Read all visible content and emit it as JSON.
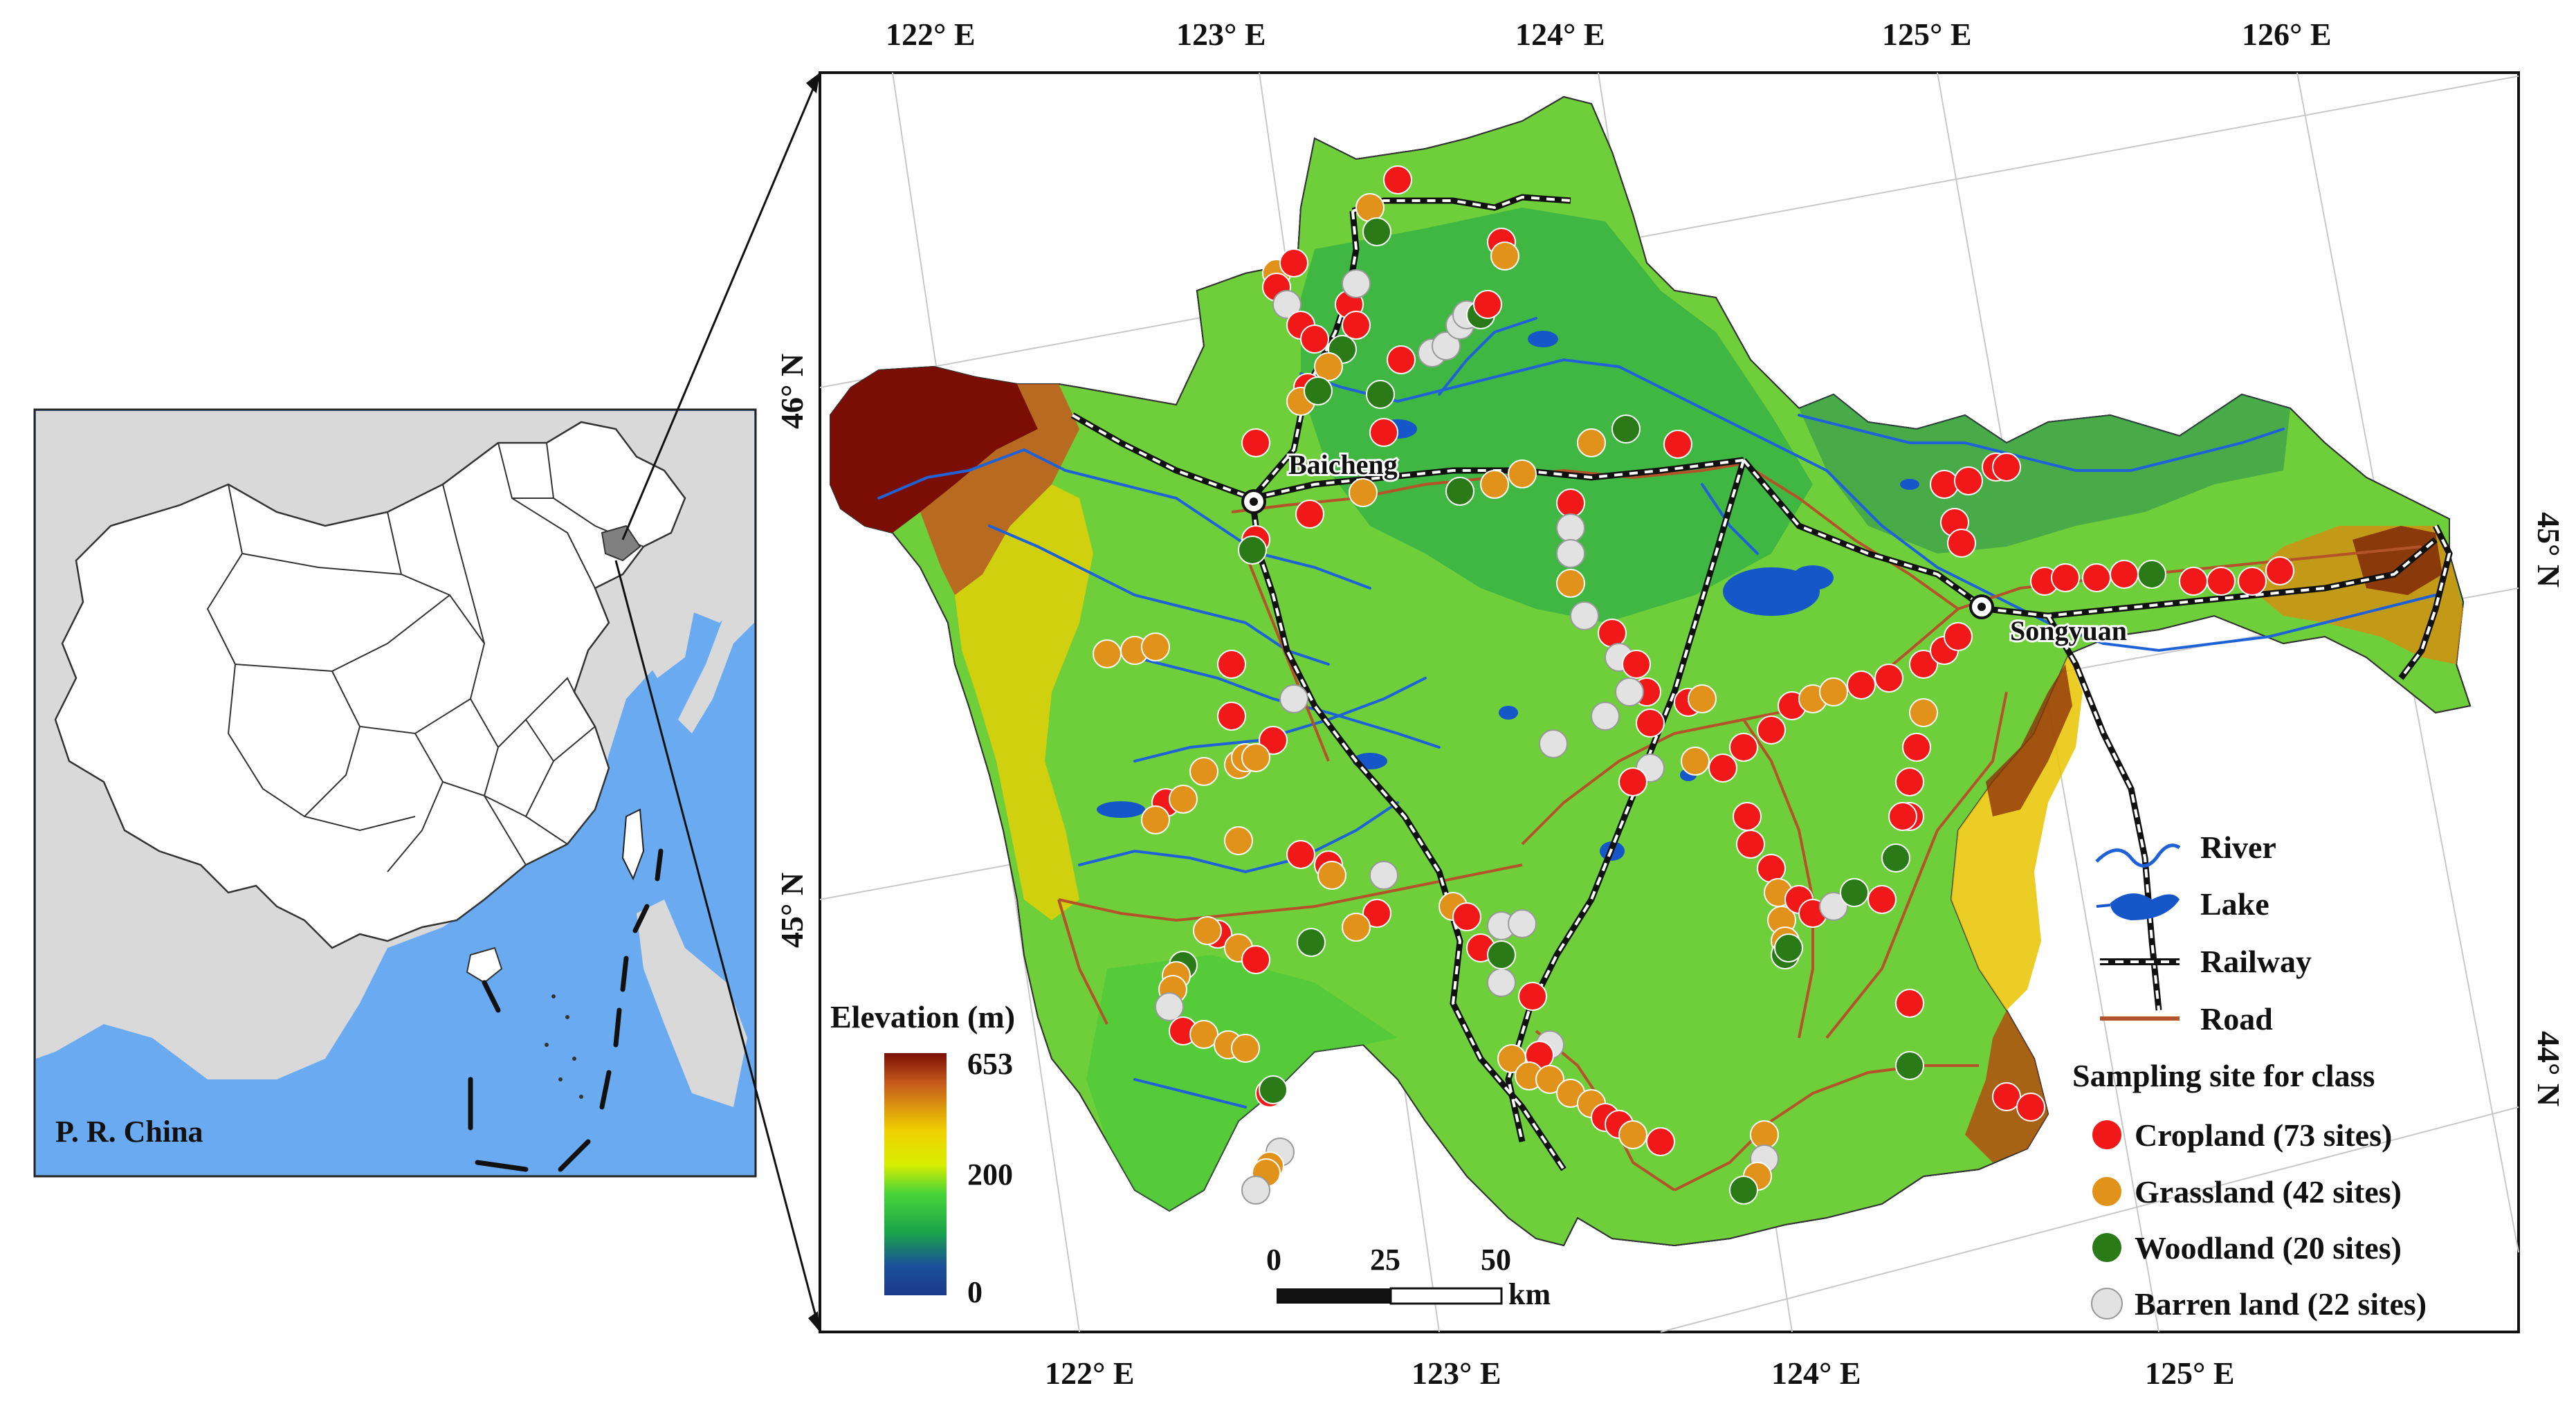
{
  "overview": {
    "country_label": "P. R. China",
    "colors": {
      "sea": "#6aaaf0",
      "land": "#d9d9d9",
      "china": "#ffffff",
      "study_area": "#808080"
    }
  },
  "main_map": {
    "top_longitude_labels": [
      "122° E",
      "123° E",
      "124° E",
      "125° E",
      "126° E"
    ],
    "bottom_longitude_labels": [
      "122° E",
      "123° E",
      "124° E",
      "125° E"
    ],
    "left_latitude_labels": [
      "46° N",
      "45° N"
    ],
    "right_latitude_labels": [
      "45° N",
      "44° N"
    ],
    "cities": [
      {
        "name": "Baicheng",
        "icon": "city-circle-icon"
      },
      {
        "name": "Songyuan",
        "icon": "city-circle-icon"
      }
    ]
  },
  "elevation_bar": {
    "title": "Elevation (m)",
    "ticks": [
      "653",
      "200",
      "0"
    ],
    "colors": [
      "#7a0e04",
      "#c4581c",
      "#f0d000",
      "#d8ee00",
      "#49d43a",
      "#1aa44a",
      "#1b4f99",
      "#1c3b8a"
    ]
  },
  "scale_bar": {
    "ticks": [
      "0",
      "25",
      "50"
    ],
    "unit": "km"
  },
  "legend": {
    "items": [
      {
        "label": "River",
        "icon": "river-icon"
      },
      {
        "label": "Lake",
        "icon": "lake-icon"
      },
      {
        "label": "Railway",
        "icon": "railway-icon"
      },
      {
        "label": "Road",
        "icon": "road-icon"
      }
    ],
    "sampling_title": "Sampling site for class",
    "classes": [
      {
        "label": "Cropland (73 sites)",
        "color": "#f01818"
      },
      {
        "label": "Grassland (42 sites)",
        "color": "#e1921a"
      },
      {
        "label": "Woodland (20 sites)",
        "color": "#2a7a17"
      },
      {
        "label": "Barren land (22 sites)",
        "color": "#e2e2e2"
      }
    ]
  }
}
